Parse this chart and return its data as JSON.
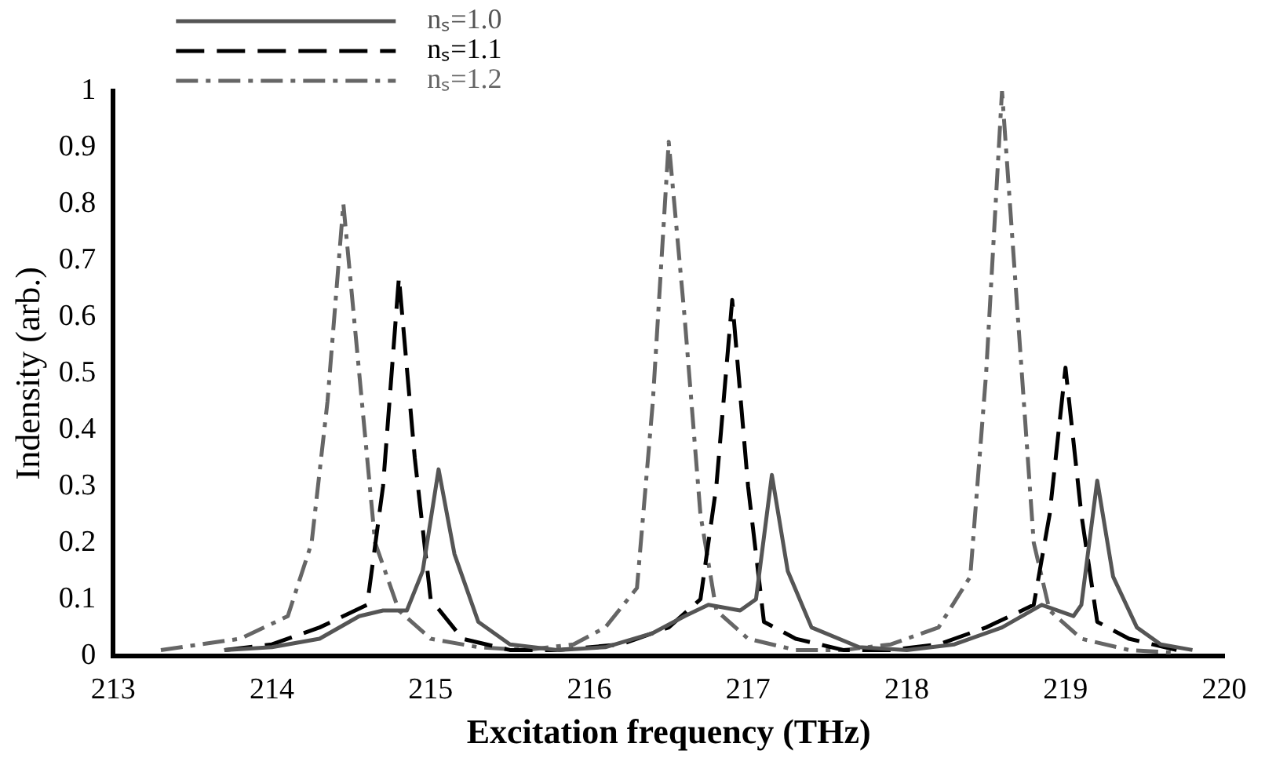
{
  "chart_data": {
    "type": "line",
    "xlabel": "Excitation frequency (THz)",
    "ylabel": "Indensity (arb.)",
    "xlim": [
      213,
      220
    ],
    "xticks": [
      213,
      214,
      215,
      216,
      217,
      218,
      219,
      220
    ],
    "ylim": [
      0,
      1
    ],
    "yticks": [
      0,
      0.1,
      0.2,
      0.3,
      0.4,
      0.5,
      0.6,
      0.7,
      0.8,
      0.9,
      1
    ],
    "grid": false,
    "legend": "top left",
    "marker": "none",
    "series": [
      {
        "name": "nₛ=1.0",
        "color": "#555555",
        "line_style": "solid",
        "x": [
          213.7,
          214.0,
          214.3,
          214.55,
          214.7,
          214.85,
          214.95,
          215.05,
          215.15,
          215.3,
          215.5,
          215.8,
          216.1,
          216.4,
          216.6,
          216.75,
          216.95,
          217.05,
          217.15,
          217.25,
          217.4,
          217.7,
          218.0,
          218.3,
          218.6,
          218.85,
          219.05,
          219.1,
          219.2,
          219.3,
          219.45,
          219.6,
          219.8
        ],
        "values": [
          0.01,
          0.015,
          0.03,
          0.07,
          0.08,
          0.08,
          0.15,
          0.33,
          0.18,
          0.06,
          0.02,
          0.01,
          0.015,
          0.04,
          0.07,
          0.09,
          0.08,
          0.1,
          0.32,
          0.15,
          0.05,
          0.015,
          0.01,
          0.02,
          0.05,
          0.09,
          0.07,
          0.09,
          0.31,
          0.14,
          0.05,
          0.02,
          0.01
        ]
      },
      {
        "name": "nₛ=1.1",
        "color": "#000000",
        "line_style": "dashed",
        "x": [
          213.7,
          214.0,
          214.3,
          214.6,
          214.7,
          214.8,
          214.9,
          215.0,
          215.2,
          215.5,
          215.8,
          216.2,
          216.5,
          216.7,
          216.8,
          216.9,
          217.0,
          217.1,
          217.3,
          217.6,
          217.9,
          218.2,
          218.5,
          218.8,
          218.9,
          219.0,
          219.1,
          219.2,
          219.4,
          219.7
        ],
        "values": [
          0.01,
          0.02,
          0.05,
          0.09,
          0.3,
          0.67,
          0.35,
          0.1,
          0.03,
          0.01,
          0.01,
          0.02,
          0.05,
          0.1,
          0.3,
          0.63,
          0.3,
          0.06,
          0.03,
          0.01,
          0.01,
          0.02,
          0.05,
          0.09,
          0.25,
          0.51,
          0.25,
          0.06,
          0.03,
          0.01
        ]
      },
      {
        "name": "nₛ=1.2",
        "color": "#666666",
        "line_style": "dashdot",
        "x": [
          213.3,
          213.8,
          214.1,
          214.25,
          214.35,
          214.45,
          214.55,
          214.65,
          214.8,
          215.0,
          215.3,
          215.6,
          215.9,
          216.1,
          216.3,
          216.4,
          216.5,
          216.6,
          216.7,
          216.8,
          217.0,
          217.3,
          217.6,
          217.9,
          218.2,
          218.4,
          218.5,
          218.6,
          218.7,
          218.8,
          218.9,
          219.1,
          219.4,
          219.7
        ],
        "values": [
          0.01,
          0.03,
          0.07,
          0.2,
          0.45,
          0.8,
          0.5,
          0.2,
          0.08,
          0.03,
          0.015,
          0.01,
          0.02,
          0.05,
          0.12,
          0.45,
          0.91,
          0.6,
          0.25,
          0.08,
          0.03,
          0.01,
          0.01,
          0.02,
          0.05,
          0.14,
          0.5,
          1.0,
          0.6,
          0.2,
          0.08,
          0.03,
          0.01,
          0.005
        ]
      }
    ]
  }
}
